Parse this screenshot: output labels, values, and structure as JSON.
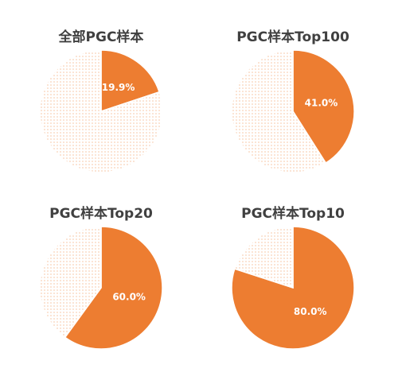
{
  "chart_data": [
    {
      "type": "pie",
      "title": "全部PGC样本",
      "slices": [
        {
          "value": 19.9,
          "label": "19.9%",
          "color": "#ED7D31",
          "pattern": "solid"
        },
        {
          "value": 80.1,
          "label": "",
          "color": "#ED7D31",
          "pattern": "dotted"
        }
      ]
    },
    {
      "type": "pie",
      "title": "PGC样本Top100",
      "slices": [
        {
          "value": 41.0,
          "label": "41.0%",
          "color": "#ED7D31",
          "pattern": "solid"
        },
        {
          "value": 59.0,
          "label": "",
          "color": "#ED7D31",
          "pattern": "dotted"
        }
      ]
    },
    {
      "type": "pie",
      "title": "PGC样本Top20",
      "slices": [
        {
          "value": 60.0,
          "label": "60.0%",
          "color": "#ED7D31",
          "pattern": "solid"
        },
        {
          "value": 40.0,
          "label": "",
          "color": "#ED7D31",
          "pattern": "dotted"
        }
      ]
    },
    {
      "type": "pie",
      "title": "PGC样本Top10",
      "slices": [
        {
          "value": 80.0,
          "label": "80.0%",
          "color": "#ED7D31",
          "pattern": "solid"
        },
        {
          "value": 20.0,
          "label": "",
          "color": "#ED7D31",
          "pattern": "dotted"
        }
      ]
    }
  ]
}
